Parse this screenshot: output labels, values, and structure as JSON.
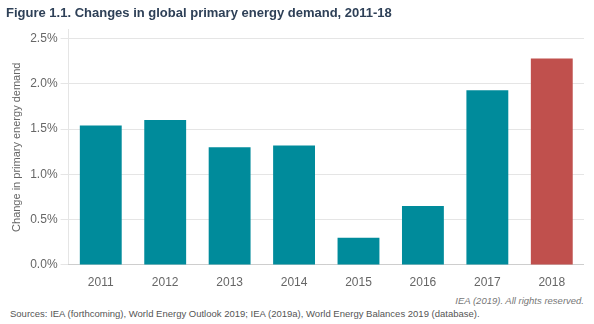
{
  "chart_data": {
    "type": "bar",
    "title": "Figure 1.1. Changes in global primary energy demand, 2011-18",
    "ylabel": "Change in primary energy demand",
    "categories": [
      "2011",
      "2012",
      "2013",
      "2014",
      "2015",
      "2016",
      "2017",
      "2018"
    ],
    "values": [
      0.0154,
      0.016,
      0.013,
      0.0132,
      0.003,
      0.0065,
      0.0193,
      0.0228
    ],
    "colors": [
      "#008B9B",
      "#008B9B",
      "#008B9B",
      "#008B9B",
      "#008B9B",
      "#008B9B",
      "#008B9B",
      "#C0504D"
    ],
    "ylim": [
      0,
      0.026
    ],
    "yticks": [
      {
        "value": 0.0,
        "label": "0.0%"
      },
      {
        "value": 0.005,
        "label": "0.5%"
      },
      {
        "value": 0.01,
        "label": "1.0%"
      },
      {
        "value": 0.015,
        "label": "1.5%"
      },
      {
        "value": 0.02,
        "label": "2.0%"
      },
      {
        "value": 0.025,
        "label": "2.5%"
      }
    ],
    "grid": true,
    "annotations": [
      "IEA (2019). All rights reserved.",
      "Sources: IEA (forthcoming), World Energy Outlook 2019; IEA (2019a), World Energy Balances 2019 (database)."
    ]
  }
}
